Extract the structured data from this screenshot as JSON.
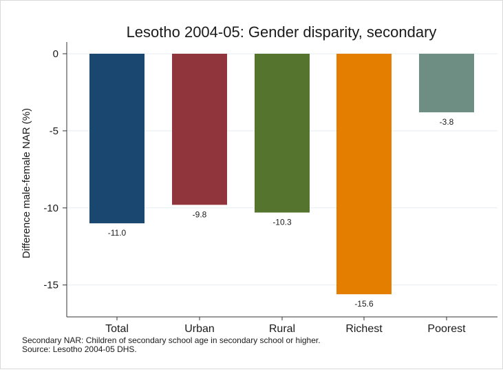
{
  "chart_data": {
    "type": "bar",
    "title": "Lesotho 2004-05: Gender disparity, secondary",
    "ylabel": "Difference male-female NAR (%)",
    "xlabel": "",
    "categories": [
      "Total",
      "Urban",
      "Rural",
      "Richest",
      "Poorest"
    ],
    "values": [
      -11.0,
      -9.8,
      -10.3,
      -15.6,
      -3.8
    ],
    "value_labels": [
      "-11.0",
      "-9.8",
      "-10.3",
      "-15.6",
      "-3.8"
    ],
    "colors": [
      "#1a476f",
      "#90353b",
      "#55752f",
      "#e37e00",
      "#6e8e84"
    ],
    "ylim": [
      -17,
      0.5
    ],
    "yticks": [
      0,
      -5,
      -10,
      -15
    ],
    "ytick_labels": [
      "0",
      "-5",
      "-10",
      "-15"
    ],
    "grid": true,
    "legend": "none"
  },
  "notes": {
    "line1": "Secondary NAR: Children of secondary school age in secondary school or higher.",
    "line2": "Source: Lesotho 2004-05 DHS."
  }
}
